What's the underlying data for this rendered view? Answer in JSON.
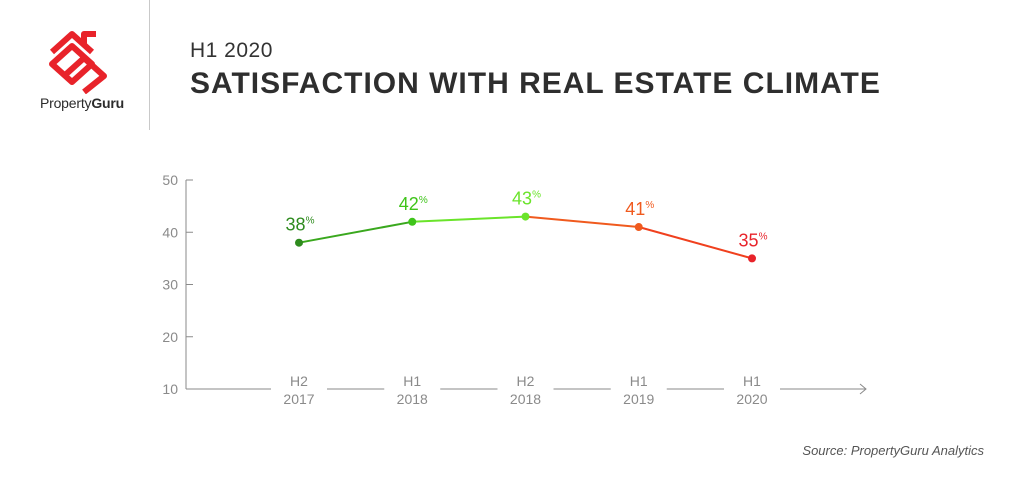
{
  "brand": {
    "name_light": "Property",
    "name_bold": "Guru",
    "accent": "#e8232a"
  },
  "header": {
    "subtitle": "H1 2020",
    "title": "SATISFACTION WITH REAL ESTATE CLIMATE"
  },
  "source": "Source: PropertyGuru Analytics",
  "chart_data": {
    "type": "line",
    "title": "SATISFACTION WITH REAL ESTATE CLIMATE",
    "subtitle": "H1 2020",
    "categories": [
      [
        "H2",
        "2017"
      ],
      [
        "H1",
        "2018"
      ],
      [
        "H2",
        "2018"
      ],
      [
        "H1",
        "2019"
      ],
      [
        "H1",
        "2020"
      ]
    ],
    "values": [
      38,
      42,
      43,
      41,
      35
    ],
    "point_labels": [
      "38",
      "42",
      "43",
      "41",
      "35"
    ],
    "label_suffix": "%",
    "point_colors": [
      "#2e8b1e",
      "#3fc41a",
      "#6ae42a",
      "#f05a1e",
      "#e8232a"
    ],
    "segment_colors": [
      "#3aa81e",
      "#6ae42a",
      "#f05a1e",
      "#f0401e"
    ],
    "yticks": [
      50,
      40,
      30,
      20,
      10
    ],
    "ylim": [
      10,
      50
    ],
    "grid": false,
    "legend": "none"
  }
}
